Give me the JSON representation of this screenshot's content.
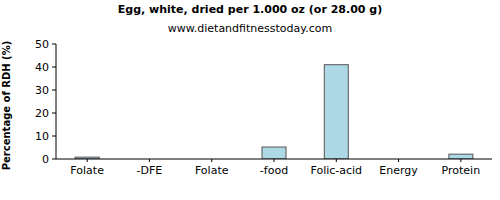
{
  "chart_data": {
    "type": "bar",
    "title": "Egg, white, dried per 1.000 oz (or 28.00 g)",
    "subtitle": "www.dietandfitnesstoday.com",
    "y_label": "Percentage of RDH (%)",
    "categories": [
      "Folate",
      "-DFE",
      "Folate",
      "-food",
      "Folic-acid",
      "Energy",
      "Protein"
    ],
    "values": [
      0.8,
      0,
      0,
      5.2,
      41,
      0,
      2.1
    ],
    "color": "#add8e6",
    "ylim": [
      0,
      50
    ],
    "yticks": [
      0,
      10,
      20,
      30,
      40,
      50
    ],
    "grid": false
  }
}
